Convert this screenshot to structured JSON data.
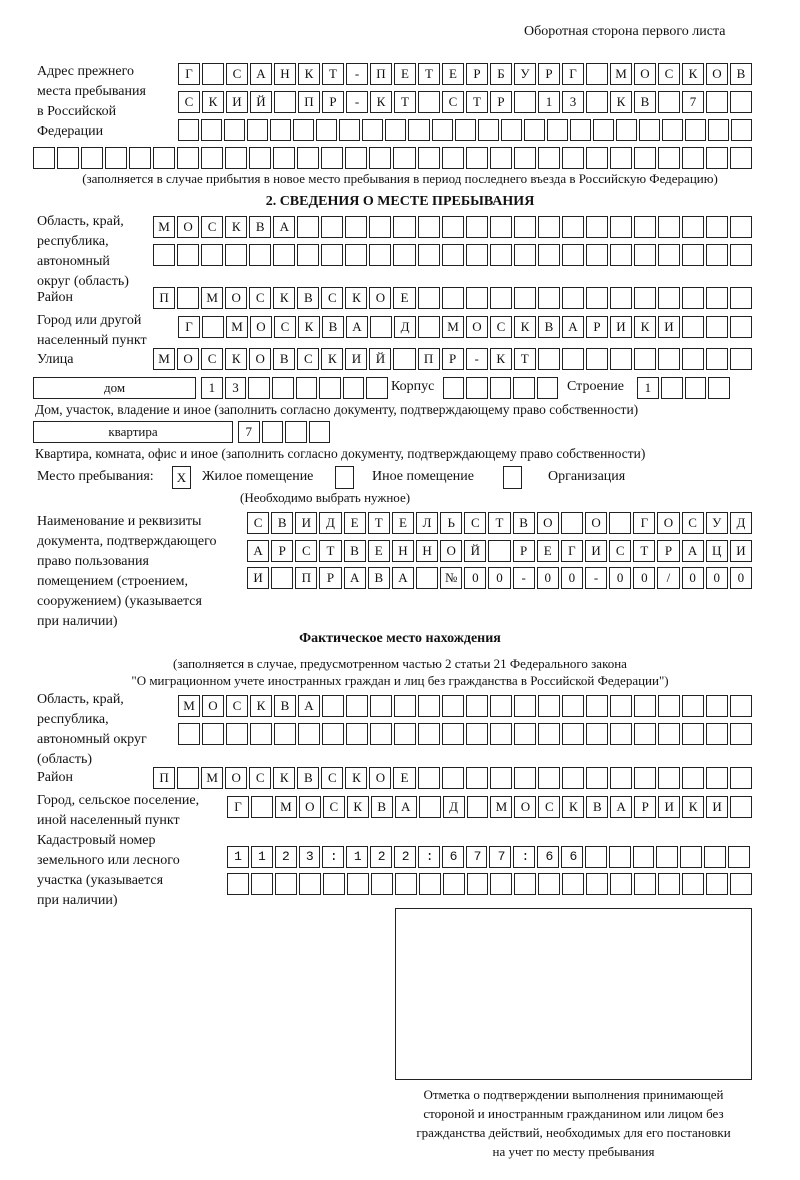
{
  "page_title": "Оборотная сторона первого листа",
  "previous_address": {
    "label": "Адрес прежнего\nместа пребывания\nв Российской\nФедерации",
    "rows": [
      "Г САНКТ-ПЕТЕРБУРГ МОСКОВ",
      "СКИЙ ПР-КТ СТР 13 КВ 7  ",
      "                         ",
      "                              "
    ],
    "note": "(заполняется в случае прибытия в новое место пребывания в период последнего въезда в Российскую Федерацию)"
  },
  "section2": {
    "heading": "2. СВЕДЕНИЯ О МЕСТЕ ПРЕБЫВАНИЯ",
    "region_label": "Область, край,\nреспублика,\nавтономный\nокруг (область)",
    "region_rows": [
      "МОСКВА                   ",
      "                         "
    ],
    "district_label": "Район",
    "district_row": "П МОСКВСКОЕ              ",
    "city_label": "Город или другой\nнаселенный пункт",
    "city_row": "Г МОСКВА Д МОСКВАРИКИ   ",
    "street_label": "Улица",
    "street_row": "МОСКОВСКИЙ ПР-КТ         ",
    "house_type": "дом",
    "house_cells": "13      ",
    "korpus_label": "Корпус",
    "korpus_cells": "     ",
    "building_label": "Строение",
    "building_cells": "1   ",
    "house_note": "Дом, участок, владение и иное (заполнить согласно документу, подтверждающему право собственности)",
    "apartment_type": "квартира",
    "apartment_cells": "7   ",
    "apartment_note": "Квартира, комната, офис и иное (заполнить согласно документу, подтверждающему право собственности)",
    "stay_place_label": "Место пребывания:",
    "options": [
      {
        "label": "Жилое помещение",
        "mark": "Х"
      },
      {
        "label": "Иное помещение",
        "mark": ""
      },
      {
        "label": "Организация",
        "mark": ""
      }
    ],
    "choose_note": "(Необходимо выбрать нужное)",
    "document_label": "Наименование и реквизиты\nдокумента, подтверждающего\nправо пользования\nпомещением (строением,\nсооружением) (указывается\nпри наличии)",
    "document_rows": [
      "СВИДЕТЕЛЬСТВО О ГОСУД",
      "АРСТВЕННОЙ РЕГИСТРАЦИ",
      "И ПРАВА №00-00-00/000"
    ]
  },
  "actual": {
    "heading": "Фактическое место нахождения",
    "note1": "(заполняется в случае, предусмотренном частью 2 статьи 21 Федерального закона",
    "note2": "\"О миграционном учете иностранных граждан и лиц без гражданства в Российской Федерации\")",
    "region_label": "Область, край,\nреспублика,\nавтономный округ\n(область)",
    "region_rows": [
      "МОСКВА                  ",
      "                        "
    ],
    "district_label": "Район",
    "district_row": "П МОСКВСКОЕ              ",
    "city_label": "Город, сельское поселение,\nиной населенный пункт",
    "city_row": "Г МОСКВА Д МОСКВАРИКИ ",
    "cadastral_label": "Кадастровый номер\nземельного или лесного\nучастка (указывается\nпри наличии)",
    "cadastral_rows": [
      "1123:122:677:66       ",
      "                      "
    ]
  },
  "stamp_caption": "Отметка о подтверждении выполнения принимающей\nстороной и иностранным гражданином или лицом без\nгражданства действий, необходимых для его постановки\nна учет по месту пребывания"
}
